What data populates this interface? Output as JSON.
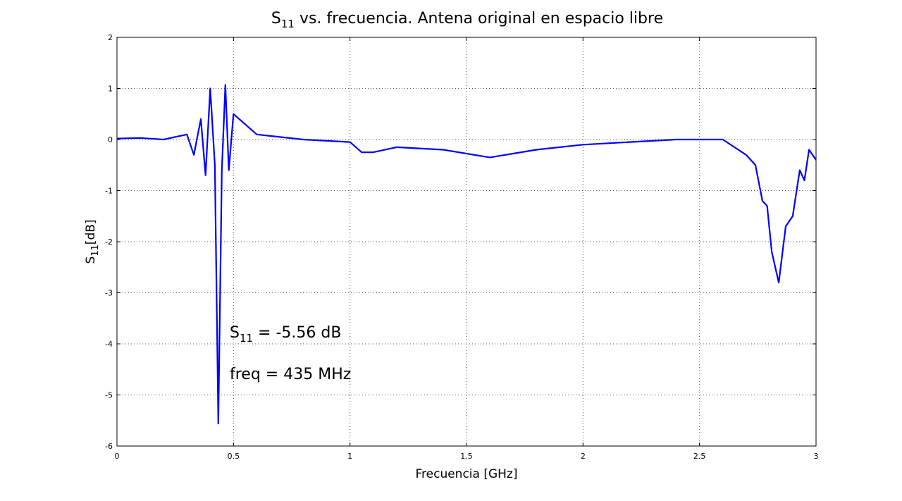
{
  "chart_data": {
    "type": "line",
    "title": {
      "main": "S",
      "sub": "11",
      "rest": " vs. frecuencia. Antena original en espacio libre"
    },
    "xlabel": "Frecuencia [GHz]",
    "ylabel": {
      "main": "S",
      "sub": "11",
      "rest": "[dB]"
    },
    "xlim": [
      0,
      3
    ],
    "ylim": [
      -6,
      2
    ],
    "xticks": [
      "0",
      "0.5",
      "1",
      "1.5",
      "2",
      "2.5",
      "3"
    ],
    "yticks": [
      "2",
      "1",
      "0",
      "-1",
      "-2",
      "-3",
      "-4",
      "-5",
      "-6"
    ],
    "grid": true,
    "line_color": "#0000ff",
    "annotations": {
      "s11": {
        "main": "S",
        "sub": "11",
        "rest": " = -5.56 dB"
      },
      "freq": "freq = 435 MHz"
    },
    "series": [
      {
        "x": [
          0,
          0.1,
          0.2,
          0.3,
          0.33,
          0.36,
          0.38,
          0.4,
          0.42,
          0.435,
          0.45,
          0.465,
          0.48,
          0.5,
          0.6,
          0.8,
          1.0,
          1.05,
          1.1,
          1.2,
          1.4,
          1.6,
          1.8,
          2.0,
          2.2,
          2.4,
          2.6,
          2.7,
          2.74,
          2.77,
          2.79,
          2.81,
          2.84,
          2.87,
          2.9,
          2.93,
          2.95,
          2.97,
          3.0
        ],
        "y": [
          0.02,
          0.03,
          0.0,
          0.1,
          -0.3,
          0.4,
          -0.7,
          1.0,
          -0.5,
          -5.56,
          -0.6,
          1.07,
          -0.6,
          0.5,
          0.1,
          0.0,
          -0.05,
          -0.25,
          -0.25,
          -0.15,
          -0.2,
          -0.35,
          -0.2,
          -0.1,
          -0.05,
          0.0,
          0.0,
          -0.3,
          -0.5,
          -1.2,
          -1.3,
          -2.2,
          -2.8,
          -1.7,
          -1.5,
          -0.6,
          -0.8,
          -0.2,
          -0.4
        ]
      }
    ]
  }
}
